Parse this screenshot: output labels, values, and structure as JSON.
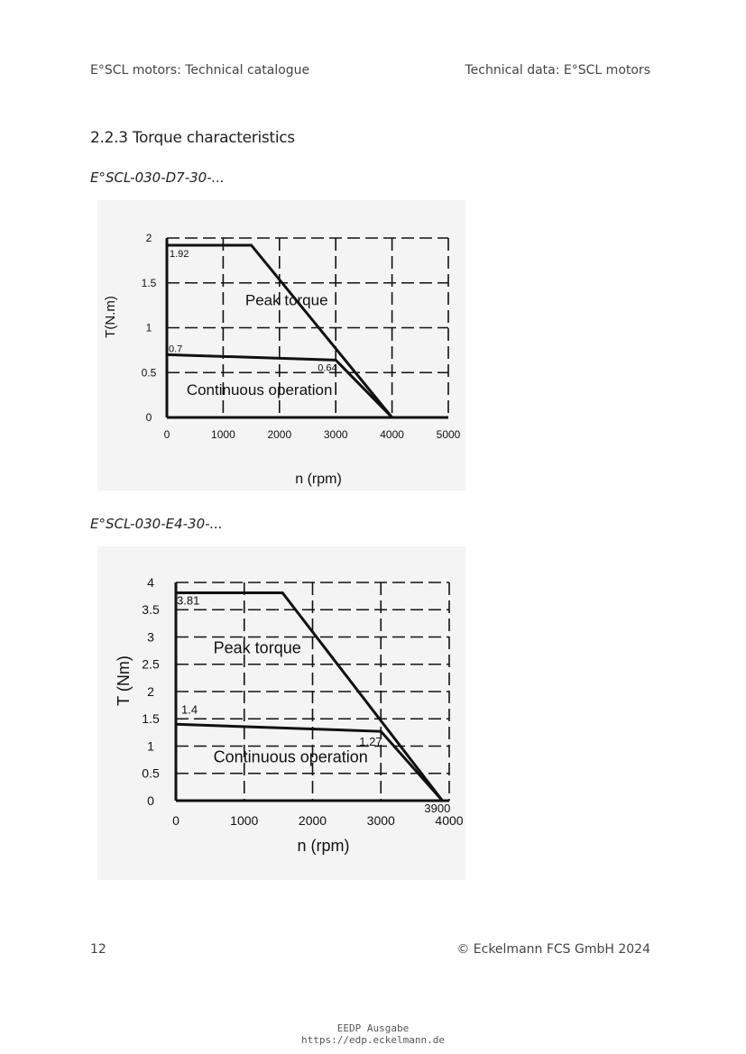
{
  "header": {
    "left": "E°SCL motors: Technical catalogue",
    "right": "Technical data: E°SCL motors"
  },
  "section_title": "2.2.3 Torque characteristics",
  "footer": {
    "page_number": "12",
    "copyright": "© Eckelmann FCS GmbH 2024"
  },
  "stamp": {
    "line1": "EEDP Ausgabe",
    "line2": "https://edp.eckelmann.de"
  },
  "chart_data": [
    {
      "type": "line",
      "title": "E°SCL-030-D7-30-...",
      "xlabel": "n (rpm)",
      "ylabel": "T(N.m)",
      "xlim": [
        0,
        5000
      ],
      "ylim": [
        0,
        2
      ],
      "x_ticks": [
        0,
        1000,
        2000,
        3000,
        4000,
        5000
      ],
      "y_ticks": [
        0,
        0.5,
        1,
        1.5,
        2
      ],
      "y_tick_labels": [
        "0",
        "0.5",
        "1",
        "1.5",
        "2"
      ],
      "grid": "dashed",
      "series": [
        {
          "name": "Peak torque",
          "x": [
            0,
            1500,
            4000
          ],
          "y": [
            1.92,
            1.92,
            0
          ]
        },
        {
          "name": "Continuous operation",
          "x": [
            0,
            3000,
            4000
          ],
          "y": [
            0.7,
            0.64,
            0
          ]
        }
      ],
      "annotations": [
        {
          "text": "1.92",
          "x": 0,
          "y": 1.92
        },
        {
          "text": "0.7",
          "x": 0,
          "y": 0.7
        },
        {
          "text": "0.64",
          "x": 3000,
          "y": 0.64
        }
      ]
    },
    {
      "type": "line",
      "title": "E°SCL-030-E4-30-...",
      "xlabel": "n (rpm)",
      "ylabel": "T (Nm)",
      "xlim": [
        0,
        4000
      ],
      "ylim": [
        0,
        4
      ],
      "x_ticks": [
        0,
        1000,
        2000,
        3000,
        4000
      ],
      "y_ticks": [
        0,
        0.5,
        1,
        1.5,
        2,
        2.5,
        3,
        3.5,
        4
      ],
      "y_tick_labels": [
        "0",
        "0.5",
        "1",
        "1.5",
        "2",
        "2.5",
        "3",
        "3.5",
        "4"
      ],
      "grid": "dashed",
      "series": [
        {
          "name": "Peak torque",
          "x": [
            0,
            1560,
            3900
          ],
          "y": [
            3.81,
            3.81,
            0
          ]
        },
        {
          "name": "Continuous operation",
          "x": [
            0,
            3000,
            3900
          ],
          "y": [
            1.4,
            1.27,
            0
          ]
        }
      ],
      "annotations": [
        {
          "text": "3.81",
          "x": 0,
          "y": 3.81
        },
        {
          "text": "1.4",
          "x": 0,
          "y": 1.4
        },
        {
          "text": "1.27",
          "x": 3000,
          "y": 1.27
        },
        {
          "text": "3900",
          "x": 3900,
          "y": 0
        }
      ]
    }
  ]
}
